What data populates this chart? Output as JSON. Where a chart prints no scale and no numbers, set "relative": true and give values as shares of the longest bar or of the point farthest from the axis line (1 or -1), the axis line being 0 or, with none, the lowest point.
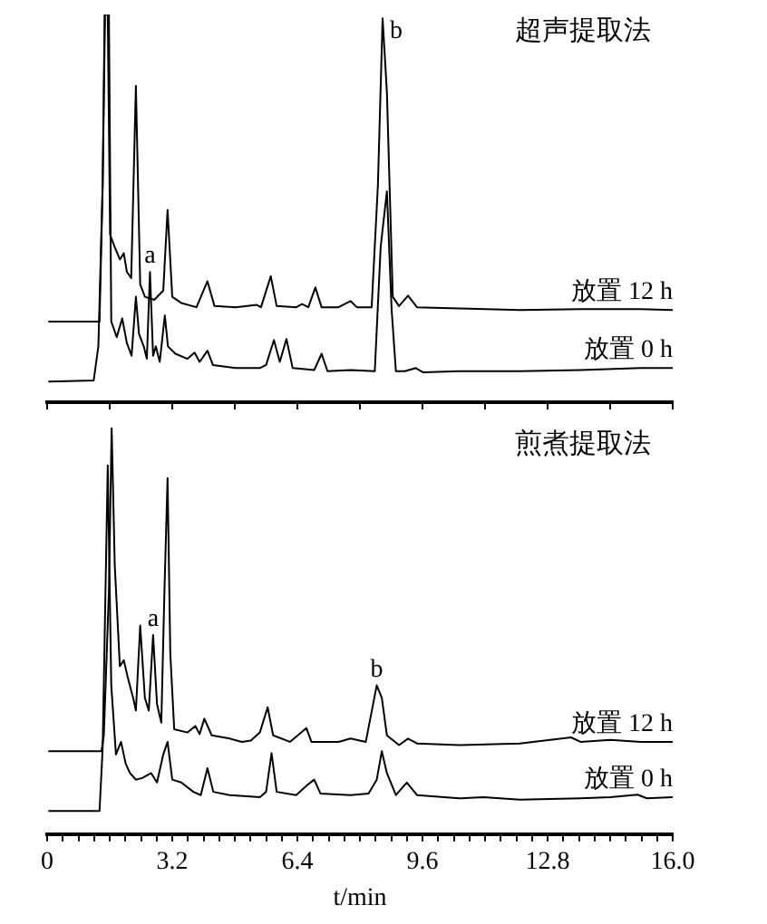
{
  "chart_data": [
    {
      "type": "line",
      "title": "超声提取法",
      "relative": true,
      "xlim": [
        0,
        16
      ],
      "xticks": [
        {
          "value": 0,
          "label": null
        },
        {
          "value": 1.6,
          "label": null
        },
        {
          "value": 3.2,
          "label": null
        },
        {
          "value": 4.8,
          "label": null
        },
        {
          "value": 6.4,
          "label": null
        },
        {
          "value": 8,
          "label": null
        },
        {
          "value": 9.6,
          "label": null
        },
        {
          "value": 11.2,
          "label": null
        },
        {
          "value": 12.8,
          "label": null
        },
        {
          "value": 14.4,
          "label": null
        },
        {
          "value": 16,
          "label": null
        }
      ],
      "tick_labels": false,
      "annotations": [
        {
          "text": "a",
          "x": 2.63,
          "y": 0.336
        },
        {
          "text": "b",
          "x": 8.58,
          "y": 0.99
        }
      ],
      "series": [
        {
          "name": "放置 12 h",
          "color": "#000000",
          "x": [
            0.03,
            1.34,
            1.42,
            1.47,
            1.55,
            1.61,
            1.73,
            1.86,
            1.96,
            2.04,
            2.15,
            2.27,
            2.38,
            2.5,
            2.74,
            2.97,
            3.08,
            3.2,
            3.43,
            3.82,
            4.1,
            4.28,
            4.82,
            5.36,
            5.47,
            5.72,
            5.87,
            6.37,
            6.52,
            6.68,
            6.86,
            7.02,
            7.45,
            7.76,
            7.92,
            8.3,
            8.46,
            8.58,
            8.69,
            8.84,
            9.0,
            9.23,
            9.46,
            10.54,
            12.09,
            13.64,
            15.18,
            16.0
          ],
          "values": [
            0.208,
            0.208,
            0.56,
            1,
            1,
            0.432,
            0.4,
            0.368,
            0.384,
            0.336,
            0.32,
            0.816,
            0.304,
            0.272,
            0.264,
            0.288,
            0.496,
            0.272,
            0.256,
            0.245,
            0.312,
            0.248,
            0.245,
            0.251,
            0.245,
            0.325,
            0.248,
            0.245,
            0.253,
            0.245,
            0.296,
            0.245,
            0.245,
            0.261,
            0.245,
            0.245,
            0.56,
            0.99,
            0.8,
            0.272,
            0.248,
            0.275,
            0.245,
            0.242,
            0.238,
            0.24,
            0.24,
            0.238
          ]
        },
        {
          "name": "放置 0 h",
          "color": "#000000",
          "x": [
            0.03,
            1.19,
            1.31,
            1.42,
            1.48,
            1.58,
            1.64,
            1.78,
            1.92,
            2.04,
            2.16,
            2.27,
            2.35,
            2.47,
            2.55,
            2.63,
            2.71,
            2.78,
            2.88,
            3.01,
            3.09,
            3.28,
            3.59,
            3.77,
            3.9,
            4.1,
            4.24,
            4.82,
            5.44,
            5.6,
            5.8,
            5.95,
            6.12,
            6.28,
            6.83,
            7.02,
            7.17,
            7.76,
            8.38,
            8.53,
            8.69,
            8.81,
            8.92,
            9.15,
            9.43,
            9.62,
            10.54,
            12.09,
            13.64,
            15.18,
            16.0
          ],
          "values": [
            0.053,
            0.056,
            0.144,
            0.56,
            1,
            1,
            0.208,
            0.168,
            0.216,
            0.152,
            0.12,
            0.272,
            0.176,
            0.144,
            0.112,
            0.336,
            0.12,
            0.144,
            0.104,
            0.224,
            0.144,
            0.125,
            0.112,
            0.128,
            0.104,
            0.133,
            0.096,
            0.088,
            0.088,
            0.096,
            0.16,
            0.104,
            0.163,
            0.088,
            0.083,
            0.125,
            0.08,
            0.083,
            0.08,
            0.4,
            0.544,
            0.24,
            0.08,
            0.08,
            0.088,
            0.077,
            0.08,
            0.08,
            0.083,
            0.088,
            0.088
          ]
        }
      ]
    },
    {
      "type": "line",
      "title": "煎煮提取法",
      "xlabel": "t/min",
      "relative": true,
      "xlim": [
        0,
        16
      ],
      "xticks": [
        0,
        {
          "value": 0.4,
          "label": null
        },
        {
          "value": 0.8,
          "label": null
        },
        {
          "value": 1.2,
          "label": null
        },
        {
          "value": 1.6,
          "label": null
        },
        {
          "value": 2,
          "label": null
        },
        {
          "value": 2.4,
          "label": null
        },
        {
          "value": 2.8,
          "label": null
        },
        3.2,
        {
          "value": 3.6,
          "label": null
        },
        {
          "value": 4,
          "label": null
        },
        {
          "value": 4.4,
          "label": null
        },
        {
          "value": 4.8,
          "label": null
        },
        {
          "value": 5.2,
          "label": null
        },
        {
          "value": 5.6,
          "label": null
        },
        {
          "value": 6,
          "label": null
        },
        6.4,
        {
          "value": 6.8,
          "label": null
        },
        {
          "value": 7.2,
          "label": null
        },
        {
          "value": 7.6,
          "label": null
        },
        {
          "value": 8,
          "label": null
        },
        {
          "value": 8.4,
          "label": null
        },
        {
          "value": 8.8,
          "label": null
        },
        {
          "value": 9.2,
          "label": null
        },
        9.6,
        {
          "value": 10,
          "label": null
        },
        {
          "value": 10.4,
          "label": null
        },
        {
          "value": 10.8,
          "label": null
        },
        {
          "value": 11.2,
          "label": null
        },
        {
          "value": 11.6,
          "label": null
        },
        {
          "value": 12,
          "label": null
        },
        {
          "value": 12.4,
          "label": null
        },
        12.8,
        {
          "value": 13.2,
          "label": null
        },
        {
          "value": 13.6,
          "label": null
        },
        {
          "value": 14,
          "label": null
        },
        {
          "value": 14.4,
          "label": null
        },
        {
          "value": 14.8,
          "label": null
        },
        {
          "value": 15.2,
          "label": null
        },
        {
          "value": 15.6,
          "label": null
        },
        {
          "value": 16,
          "label": "16.0"
        }
      ],
      "annotations": [
        {
          "text": "a",
          "x": 2.71,
          "y": 0.49
        },
        {
          "text": "b",
          "x": 8.43,
          "y": 0.366
        }
      ],
      "series": [
        {
          "name": "放置 12 h",
          "color": "#000000",
          "x": [
            0.03,
            1.39,
            1.45,
            1.58,
            1.65,
            1.73,
            1.86,
            1.96,
            2.07,
            2.2,
            2.27,
            2.38,
            2.5,
            2.6,
            2.71,
            2.81,
            2.92,
            3.0,
            3.08,
            3.15,
            3.25,
            3.59,
            3.79,
            3.9,
            4.02,
            4.21,
            4.67,
            4.98,
            5.21,
            5.44,
            5.64,
            5.78,
            6.21,
            6.63,
            6.76,
            7.45,
            7.76,
            8.15,
            8.43,
            8.56,
            8.69,
            9.0,
            9.23,
            9.46,
            10.54,
            12.09,
            13.4,
            13.64,
            14.41,
            15.18,
            16.0
          ],
          "values": [
            0.204,
            0.204,
            0.243,
            0.598,
            1,
            0.66,
            0.413,
            0.428,
            0.382,
            0.335,
            0.304,
            0.513,
            0.335,
            0.304,
            0.49,
            0.32,
            0.274,
            0.598,
            0.876,
            0.444,
            0.258,
            0.25,
            0.266,
            0.246,
            0.284,
            0.243,
            0.235,
            0.227,
            0.23,
            0.25,
            0.312,
            0.243,
            0.227,
            0.261,
            0.227,
            0.227,
            0.235,
            0.227,
            0.366,
            0.335,
            0.243,
            0.219,
            0.235,
            0.223,
            0.219,
            0.223,
            0.238,
            0.227,
            0.232,
            0.227,
            0.227
          ]
        },
        {
          "name": "放置 0 h",
          "color": "#000000",
          "x": [
            0.03,
            1.34,
            1.42,
            1.55,
            1.64,
            1.76,
            1.89,
            2.01,
            2.12,
            2.27,
            2.43,
            2.66,
            2.81,
            2.97,
            3.08,
            3.2,
            3.43,
            3.74,
            3.93,
            4.1,
            4.25,
            4.67,
            5.44,
            5.6,
            5.74,
            5.87,
            6.37,
            6.63,
            6.83,
            6.99,
            7.76,
            8.22,
            8.43,
            8.56,
            8.69,
            8.92,
            9.2,
            9.46,
            10.54,
            11.16,
            12.09,
            13.64,
            14.41,
            15.1,
            15.34,
            16.0
          ],
          "values": [
            0.057,
            0.057,
            0.212,
            0.907,
            0.366,
            0.196,
            0.227,
            0.173,
            0.15,
            0.134,
            0.138,
            0.15,
            0.127,
            0.196,
            0.227,
            0.134,
            0.127,
            0.104,
            0.096,
            0.162,
            0.104,
            0.096,
            0.091,
            0.104,
            0.199,
            0.104,
            0.096,
            0.119,
            0.134,
            0.1,
            0.096,
            0.1,
            0.134,
            0.204,
            0.15,
            0.096,
            0.127,
            0.096,
            0.088,
            0.091,
            0.085,
            0.088,
            0.091,
            0.097,
            0.088,
            0.091
          ]
        }
      ]
    }
  ]
}
